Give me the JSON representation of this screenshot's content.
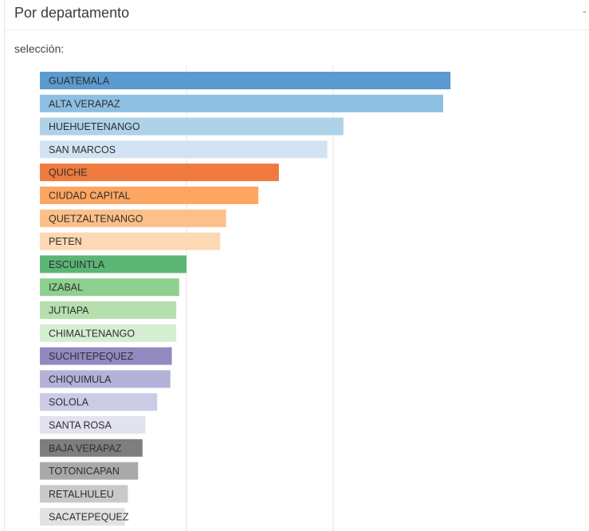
{
  "panel": {
    "title": "Por departamento",
    "collapse_label": "-",
    "selection_label": "selección:"
  },
  "chart_data": {
    "type": "bar",
    "orientation": "horizontal",
    "categories": [
      "GUATEMALA",
      "ALTA VERAPAZ",
      "HUEHUETENANGO",
      "SAN MARCOS",
      "QUICHE",
      "CIUDAD CAPITAL",
      "QUETZALTENANGO",
      "PETEN",
      "ESCUINTLA",
      "IZABAL",
      "JUTIAPA",
      "CHIMALTENANGO",
      "SUCHITEPEQUEZ",
      "CHIQUIMULA",
      "SOLOLA",
      "SANTA ROSA",
      "BAJA VERAPAZ",
      "TOTONICAPAN",
      "RETALHULEU",
      "SACATEPEQUEZ"
    ],
    "values": [
      2.8,
      2.75,
      2.07,
      1.96,
      1.63,
      1.49,
      1.27,
      1.23,
      1.0,
      0.95,
      0.93,
      0.93,
      0.9,
      0.89,
      0.8,
      0.72,
      0.7,
      0.67,
      0.6,
      0.58
    ],
    "colors": [
      "#5b9bd0",
      "#8cbfe2",
      "#aed2e8",
      "#d1e3f3",
      "#ee7a3e",
      "#fda662",
      "#fdc089",
      "#fdd8b5",
      "#5bb574",
      "#8ed08f",
      "#b5e0ad",
      "#d6eed1",
      "#918ac1",
      "#b4b2d8",
      "#cbcbe6",
      "#e2e2f0",
      "#7e7e7e",
      "#a9a9a9",
      "#c9c9c9",
      "#e2e2e2"
    ],
    "xlim": [
      0,
      3.0
    ],
    "gridlines": [
      1,
      2
    ],
    "grid": true,
    "legend": "none"
  }
}
